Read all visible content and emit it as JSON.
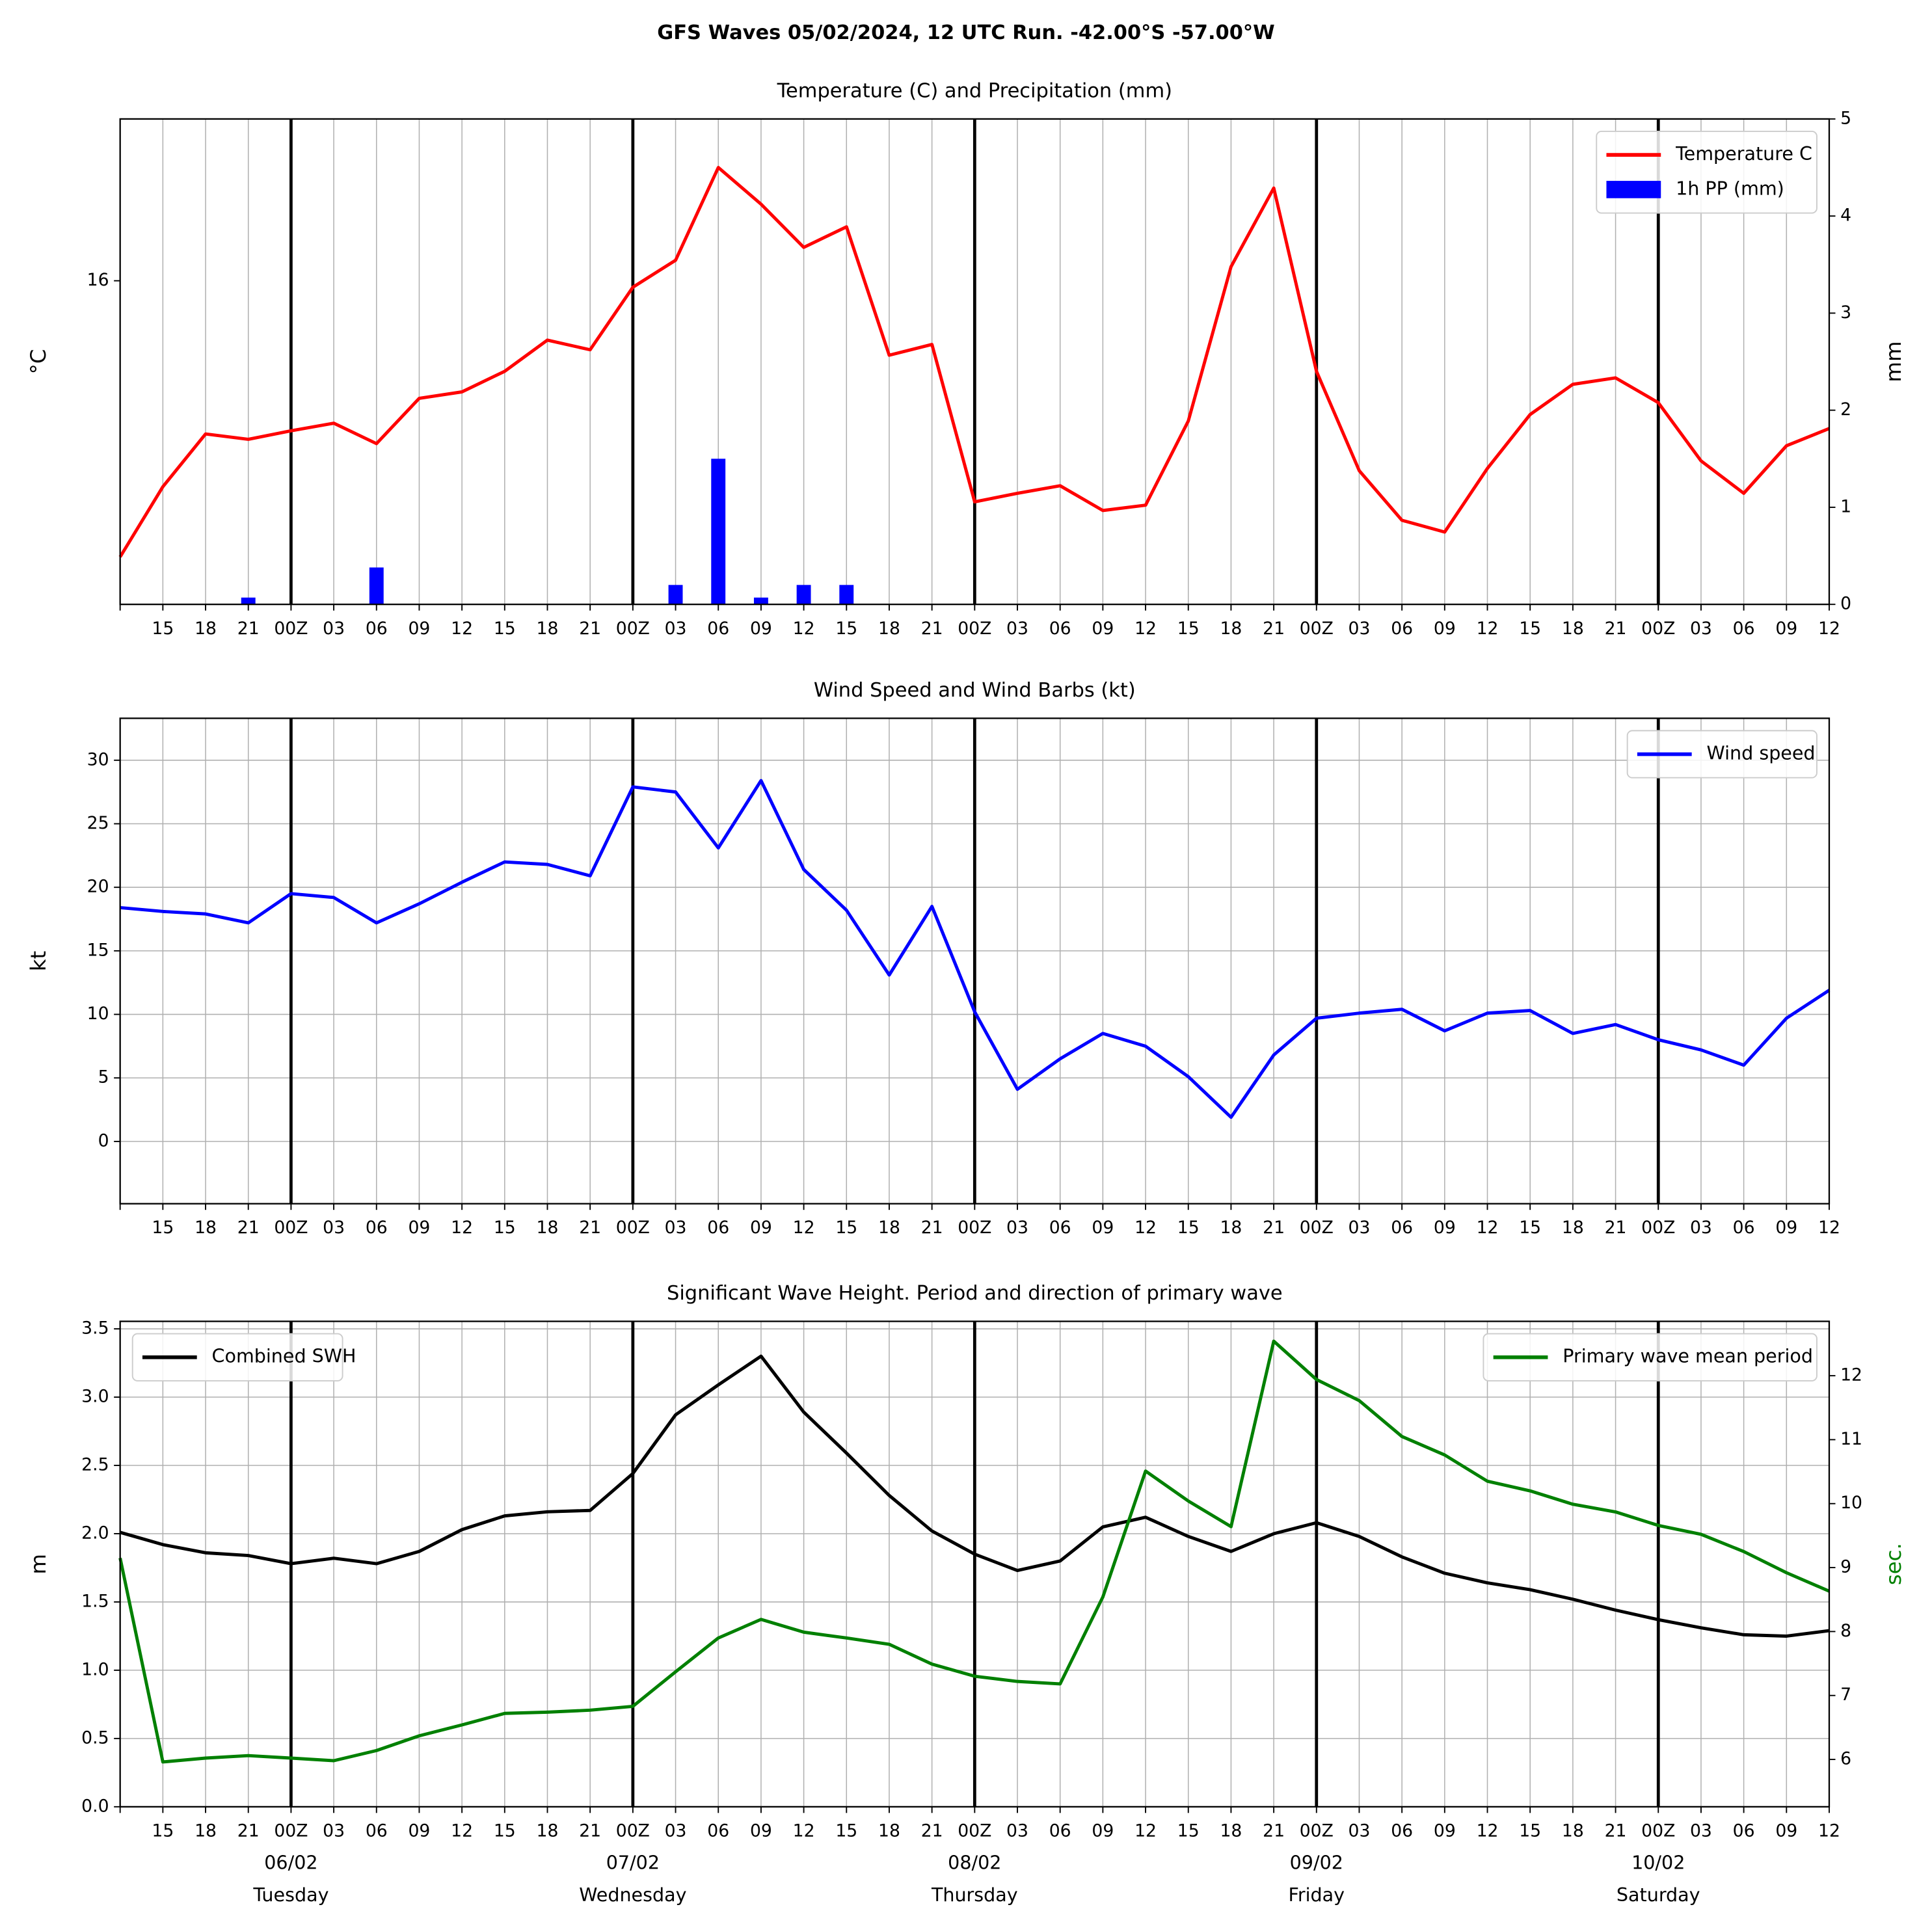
{
  "title": "GFS Waves 05/02/2024, 12 UTC Run. -42.00°S -57.00°W",
  "chart_data": [
    {
      "type": "line",
      "title": "Temperature (C) and Precipitation (mm)",
      "ylabel": "°C",
      "y2label": "mm",
      "grid": "x",
      "legend": "upper right",
      "categories": [
        null,
        "15",
        "18",
        "21",
        "00Z",
        "03",
        "06",
        "09",
        "12",
        "15",
        "18",
        "21",
        "00Z",
        "03",
        "06",
        "09",
        "12",
        "15",
        "18",
        "21",
        "00Z",
        "03",
        "06",
        "09",
        "12",
        "15",
        "18",
        "21",
        "00Z",
        "03",
        "06",
        "09",
        "12",
        "15",
        "18",
        "21",
        "00Z",
        "03",
        "06",
        "09",
        "12"
      ],
      "ylim": [
        13,
        17.5
      ],
      "yticks": [
        16
      ],
      "y2lim": [
        0,
        5
      ],
      "y2ticks": [
        0,
        1,
        2,
        3,
        4,
        5
      ],
      "series": [
        {
          "name": "Temperature C",
          "color": "#ff0000",
          "values": [
            13.44,
            14.09,
            14.58,
            14.53,
            14.61,
            14.68,
            14.49,
            14.91,
            14.97,
            15.16,
            15.45,
            15.36,
            15.94,
            16.19,
            17.05,
            16.71,
            16.31,
            16.5,
            15.31,
            15.41,
            13.95,
            14.03,
            14.1,
            13.87,
            13.92,
            14.7,
            16.13,
            16.86,
            15.16,
            14.24,
            13.78,
            13.67,
            14.26,
            14.76,
            15.04,
            15.1,
            14.87,
            14.33,
            14.03,
            14.47,
            14.63
          ]
        },
        {
          "name": "1h PP (mm)",
          "type": "bar",
          "axis": "y2",
          "color": "#0000ff",
          "values": [
            0,
            0,
            0,
            0.07,
            0,
            0,
            0.38,
            0,
            0,
            0,
            0,
            0,
            0,
            0.2,
            1.5,
            0.07,
            0.2,
            0.2,
            0,
            0,
            0,
            0,
            0,
            0,
            0,
            0,
            0,
            0,
            0,
            0,
            0,
            0,
            0,
            0,
            0,
            0,
            0,
            0,
            0,
            0,
            0
          ]
        }
      ]
    },
    {
      "type": "line",
      "title": "Wind Speed and Wind Barbs (kt)",
      "ylabel": "kt",
      "grid": "both",
      "legend": "upper right",
      "categories": [
        null,
        "15",
        "18",
        "21",
        "00Z",
        "03",
        "06",
        "09",
        "12",
        "15",
        "18",
        "21",
        "00Z",
        "03",
        "06",
        "09",
        "12",
        "15",
        "18",
        "21",
        "00Z",
        "03",
        "06",
        "09",
        "12",
        "15",
        "18",
        "21",
        "00Z",
        "03",
        "06",
        "09",
        "12",
        "15",
        "18",
        "21",
        "00Z",
        "03",
        "06",
        "09",
        "12"
      ],
      "ylim": [
        -4.9,
        33.3
      ],
      "yticks": [
        0,
        5,
        10,
        15,
        20,
        25,
        30
      ],
      "series": [
        {
          "name": "Wind speed",
          "color": "#0000ff",
          "values": [
            18.4,
            18.1,
            17.9,
            17.2,
            19.5,
            19.2,
            17.2,
            18.7,
            20.4,
            22.0,
            21.8,
            20.9,
            27.9,
            27.5,
            23.1,
            28.4,
            21.4,
            18.2,
            13.1,
            18.5,
            10.2,
            4.1,
            6.5,
            8.5,
            7.5,
            5.1,
            1.9,
            6.8,
            9.7,
            10.1,
            10.4,
            8.7,
            10.1,
            10.3,
            8.5,
            9.2,
            8.0,
            7.2,
            6.0,
            9.7,
            11.9
          ]
        }
      ]
    },
    {
      "type": "line",
      "title": "Significant Wave Height. Period and direction of primary wave",
      "ylabel": "m",
      "y2label": "sec.",
      "y2label_color": "#008000",
      "grid": "both",
      "categories": [
        null,
        "15",
        "18",
        "21",
        "00Z",
        "03",
        "06",
        "09",
        "12",
        "15",
        "18",
        "21",
        "00Z",
        "03",
        "06",
        "09",
        "12",
        "15",
        "18",
        "21",
        "00Z",
        "03",
        "06",
        "09",
        "12",
        "15",
        "18",
        "21",
        "00Z",
        "03",
        "06",
        "09",
        "12",
        "15",
        "18",
        "21",
        "00Z",
        "03",
        "06",
        "09",
        "12"
      ],
      "dates": [
        null,
        null,
        null,
        null,
        "06/02",
        null,
        null,
        null,
        null,
        null,
        null,
        null,
        "07/02",
        null,
        null,
        null,
        null,
        null,
        null,
        null,
        "08/02",
        null,
        null,
        null,
        null,
        null,
        null,
        null,
        "09/02",
        null,
        null,
        null,
        null,
        null,
        null,
        null,
        "10/02",
        null,
        null,
        null,
        null
      ],
      "weekdays": [
        null,
        null,
        null,
        null,
        "Tuesday",
        null,
        null,
        null,
        null,
        null,
        null,
        null,
        "Wednesday",
        null,
        null,
        null,
        null,
        null,
        null,
        null,
        "Thursday",
        null,
        null,
        null,
        null,
        null,
        null,
        null,
        "Friday",
        null,
        null,
        null,
        null,
        null,
        null,
        null,
        "Saturday",
        null,
        null,
        null,
        null
      ],
      "ylim": [
        0,
        3.555
      ],
      "yticks": [
        {
          "value": 0,
          "label": "0.0"
        },
        0.5,
        {
          "value": 1,
          "label": "1.0"
        },
        1.5,
        {
          "value": 2,
          "label": "2.0"
        },
        2.5,
        {
          "value": 3,
          "label": "3.0"
        },
        3.5
      ],
      "y2lim": [
        5.26,
        12.85
      ],
      "y2ticks": [
        6,
        7,
        8,
        9,
        10,
        11,
        12
      ],
      "series": [
        {
          "name": "Combined SWH",
          "color": "#000000",
          "legend": "upper left",
          "values": [
            2.01,
            1.92,
            1.86,
            1.84,
            1.78,
            1.82,
            1.78,
            1.87,
            2.03,
            2.13,
            2.16,
            2.17,
            2.44,
            2.87,
            3.09,
            3.3,
            2.89,
            2.59,
            2.28,
            2.02,
            1.85,
            1.73,
            1.8,
            2.05,
            2.12,
            1.98,
            1.87,
            2.0,
            2.08,
            1.98,
            1.83,
            1.71,
            1.64,
            1.59,
            1.52,
            1.44,
            1.37,
            1.31,
            1.26,
            1.25,
            1.29
          ]
        },
        {
          "name": "Primary wave mean period",
          "color": "#008000",
          "axis": "y2",
          "legend": "upper right",
          "values": [
            9.15,
            5.96,
            6.02,
            6.06,
            6.02,
            5.98,
            6.14,
            6.37,
            6.54,
            6.72,
            6.74,
            6.77,
            6.83,
            7.37,
            7.9,
            8.19,
            7.99,
            7.9,
            7.8,
            7.49,
            7.3,
            7.22,
            7.18,
            8.54,
            10.51,
            10.04,
            9.64,
            12.54,
            11.94,
            11.61,
            11.05,
            10.76,
            10.35,
            10.2,
            9.99,
            9.87,
            9.66,
            9.52,
            9.25,
            8.92,
            8.63
          ]
        }
      ]
    }
  ]
}
